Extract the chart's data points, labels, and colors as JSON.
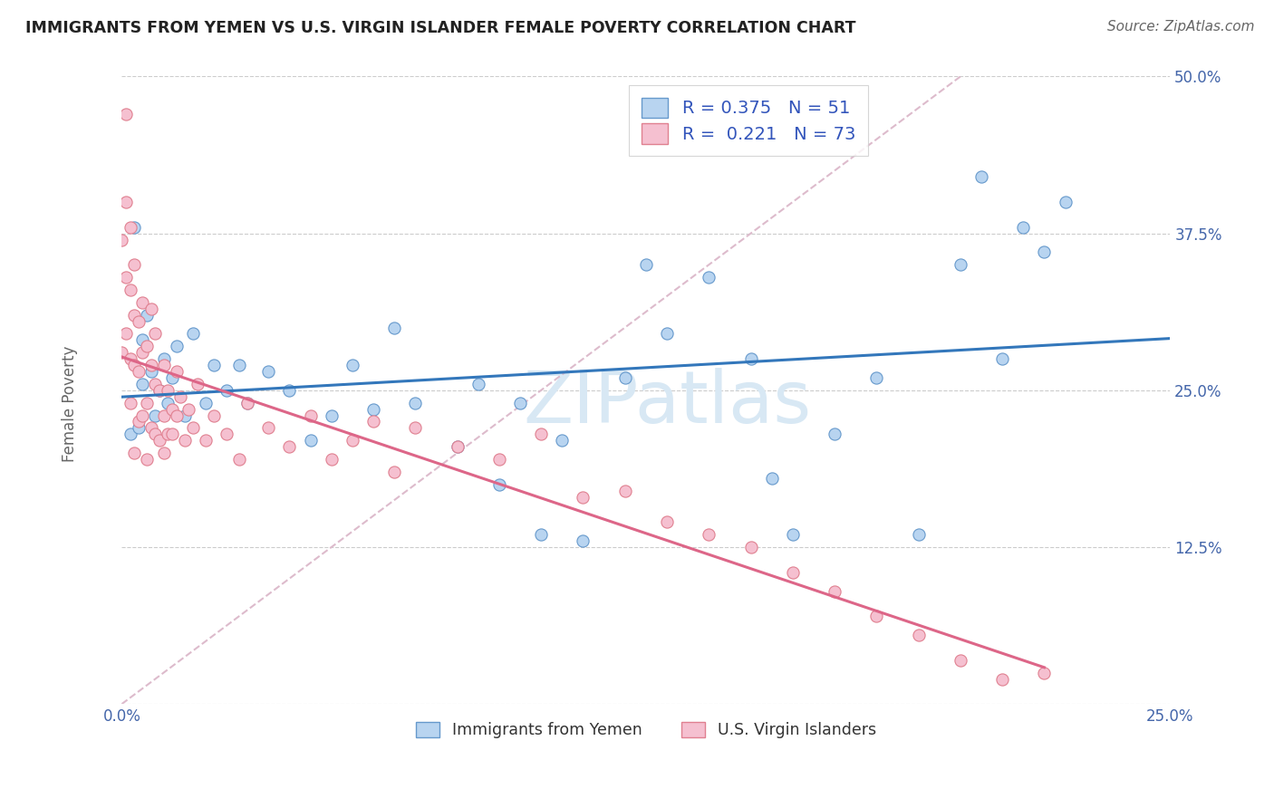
{
  "title": "IMMIGRANTS FROM YEMEN VS U.S. VIRGIN ISLANDER FEMALE POVERTY CORRELATION CHART",
  "source": "Source: ZipAtlas.com",
  "ylabel": "Female Poverty",
  "xlim": [
    0,
    0.25
  ],
  "ylim": [
    0,
    0.5
  ],
  "series1_name": "Immigrants from Yemen",
  "series1_color": "#b8d4f0",
  "series1_edge": "#6699cc",
  "series1_R": 0.375,
  "series1_N": 51,
  "series2_name": "U.S. Virgin Islanders",
  "series2_color": "#f5c0d0",
  "series2_edge": "#e08090",
  "series2_R": 0.221,
  "series2_N": 73,
  "trend1_color": "#3377bb",
  "trend2_color": "#dd6688",
  "ref_line_color": "#ddbbcc",
  "watermark_color": "#d8e8f4",
  "background_color": "#ffffff",
  "series1_x": [
    0.002,
    0.003,
    0.004,
    0.005,
    0.005,
    0.006,
    0.007,
    0.008,
    0.009,
    0.01,
    0.011,
    0.012,
    0.013,
    0.015,
    0.017,
    0.02,
    0.022,
    0.025,
    0.028,
    0.03,
    0.035,
    0.04,
    0.045,
    0.05,
    0.055,
    0.06,
    0.065,
    0.07,
    0.08,
    0.085,
    0.09,
    0.095,
    0.1,
    0.105,
    0.11,
    0.12,
    0.125,
    0.13,
    0.14,
    0.15,
    0.155,
    0.16,
    0.17,
    0.18,
    0.19,
    0.2,
    0.205,
    0.21,
    0.215,
    0.22,
    0.225
  ],
  "series1_y": [
    0.215,
    0.38,
    0.22,
    0.29,
    0.255,
    0.31,
    0.265,
    0.23,
    0.25,
    0.275,
    0.24,
    0.26,
    0.285,
    0.23,
    0.295,
    0.24,
    0.27,
    0.25,
    0.27,
    0.24,
    0.265,
    0.25,
    0.21,
    0.23,
    0.27,
    0.235,
    0.3,
    0.24,
    0.205,
    0.255,
    0.175,
    0.24,
    0.135,
    0.21,
    0.13,
    0.26,
    0.35,
    0.295,
    0.34,
    0.275,
    0.18,
    0.135,
    0.215,
    0.26,
    0.135,
    0.35,
    0.42,
    0.275,
    0.38,
    0.36,
    0.4
  ],
  "series2_x": [
    0.0,
    0.0,
    0.001,
    0.001,
    0.001,
    0.001,
    0.002,
    0.002,
    0.002,
    0.002,
    0.003,
    0.003,
    0.003,
    0.003,
    0.004,
    0.004,
    0.004,
    0.005,
    0.005,
    0.005,
    0.006,
    0.006,
    0.006,
    0.007,
    0.007,
    0.007,
    0.008,
    0.008,
    0.008,
    0.009,
    0.009,
    0.01,
    0.01,
    0.01,
    0.011,
    0.011,
    0.012,
    0.012,
    0.013,
    0.013,
    0.014,
    0.015,
    0.016,
    0.017,
    0.018,
    0.02,
    0.022,
    0.025,
    0.028,
    0.03,
    0.035,
    0.04,
    0.045,
    0.05,
    0.055,
    0.06,
    0.065,
    0.07,
    0.08,
    0.09,
    0.1,
    0.11,
    0.12,
    0.13,
    0.14,
    0.15,
    0.16,
    0.17,
    0.18,
    0.19,
    0.2,
    0.21,
    0.22
  ],
  "series2_y": [
    0.37,
    0.28,
    0.47,
    0.4,
    0.34,
    0.295,
    0.33,
    0.275,
    0.38,
    0.24,
    0.2,
    0.27,
    0.31,
    0.35,
    0.225,
    0.265,
    0.305,
    0.23,
    0.28,
    0.32,
    0.195,
    0.24,
    0.285,
    0.22,
    0.27,
    0.315,
    0.215,
    0.255,
    0.295,
    0.21,
    0.25,
    0.23,
    0.2,
    0.27,
    0.215,
    0.25,
    0.235,
    0.215,
    0.265,
    0.23,
    0.245,
    0.21,
    0.235,
    0.22,
    0.255,
    0.21,
    0.23,
    0.215,
    0.195,
    0.24,
    0.22,
    0.205,
    0.23,
    0.195,
    0.21,
    0.225,
    0.185,
    0.22,
    0.205,
    0.195,
    0.215,
    0.165,
    0.17,
    0.145,
    0.135,
    0.125,
    0.105,
    0.09,
    0.07,
    0.055,
    0.035,
    0.02,
    0.025
  ]
}
